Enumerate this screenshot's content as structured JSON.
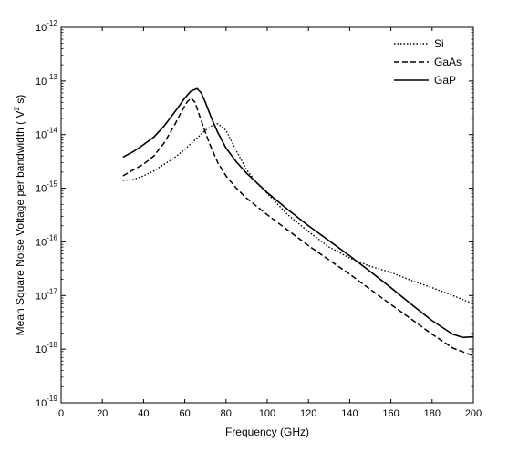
{
  "chart_data": {
    "type": "line",
    "title": "",
    "xlabel": "Frequency (GHz)",
    "ylabel_pre": "Mean Square Noise Voltage per bandwidth ( V",
    "ylabel_sup": "2",
    "ylabel_post": " s)",
    "xlim": [
      0,
      200
    ],
    "ylim_exp": [
      -19,
      -12
    ],
    "yscale": "log",
    "grid": false,
    "legend_position": "top-right",
    "x_ticks": [
      0,
      20,
      40,
      60,
      80,
      100,
      120,
      140,
      160,
      180,
      200
    ],
    "x_tick_labels": [
      "0",
      "20",
      "40",
      "60",
      "80",
      "100",
      "120",
      "140",
      "160",
      "180",
      "200"
    ],
    "y_ticks": [
      {
        "base": "10",
        "exp": "-12",
        "value": -12
      },
      {
        "base": "10",
        "exp": "-13",
        "value": -13
      },
      {
        "base": "10",
        "exp": "-14",
        "value": -14
      },
      {
        "base": "10",
        "exp": "-15",
        "value": -15
      },
      {
        "base": "10",
        "exp": "-16",
        "value": -16
      },
      {
        "base": "10",
        "exp": "-17",
        "value": -17
      },
      {
        "base": "10",
        "exp": "-18",
        "value": -18
      },
      {
        "base": "10",
        "exp": "-19",
        "value": -19
      }
    ],
    "series": [
      {
        "name": "Si",
        "style": "dotted",
        "color": "#000000",
        "x": [
          30,
          35,
          40,
          45,
          50,
          55,
          60,
          65,
          70,
          73,
          76,
          80,
          85,
          90,
          95,
          100,
          110,
          120,
          130,
          140,
          150,
          160,
          170,
          180,
          190,
          200
        ],
        "y": [
          1.4e-15,
          1.45e-15,
          1.7e-15,
          2.1e-15,
          2.8e-15,
          3.7e-15,
          5.3e-15,
          8e-15,
          1.2e-14,
          1.45e-14,
          1.6e-14,
          1.2e-14,
          5e-15,
          2.2e-15,
          1.25e-15,
          8e-16,
          3.2e-16,
          1.55e-16,
          8e-17,
          5e-17,
          3.5e-17,
          2.7e-17,
          1.9e-17,
          1.4e-17,
          1e-17,
          7e-18
        ]
      },
      {
        "name": "GaAs",
        "style": "dashed",
        "color": "#000000",
        "x": [
          30,
          35,
          40,
          45,
          50,
          55,
          58,
          61,
          63,
          65,
          68,
          72,
          76,
          80,
          85,
          90,
          100,
          110,
          120,
          130,
          140,
          150,
          160,
          170,
          180,
          190,
          200
        ],
        "y": [
          1.7e-15,
          2.2e-15,
          2.8e-15,
          4e-15,
          7e-15,
          1.5e-14,
          2.5e-14,
          4e-14,
          4.8e-14,
          4e-14,
          1.8e-14,
          6.8e-15,
          3e-15,
          1.7e-15,
          1e-15,
          6.5e-16,
          3.2e-16,
          1.65e-16,
          8.5e-17,
          4.6e-17,
          2.5e-17,
          1.3e-17,
          6.8e-18,
          3.6e-18,
          1.9e-18,
          1.05e-18,
          7.5e-19
        ]
      },
      {
        "name": "GaP",
        "style": "solid",
        "color": "#000000",
        "x": [
          30,
          35,
          40,
          45,
          50,
          55,
          60,
          63,
          66,
          68,
          70,
          73,
          76,
          80,
          85,
          90,
          100,
          110,
          120,
          130,
          140,
          150,
          160,
          170,
          180,
          190,
          195,
          200
        ],
        "y": [
          3.8e-15,
          4.8e-15,
          6.5e-15,
          9e-15,
          1.45e-14,
          2.6e-14,
          4.8e-14,
          6.5e-14,
          7.2e-14,
          6e-14,
          4e-14,
          2e-14,
          1.1e-14,
          5.6e-15,
          3.1e-15,
          1.9e-15,
          8.3e-16,
          4e-16,
          2e-16,
          1.05e-16,
          5.5e-17,
          2.8e-17,
          1.4e-17,
          6.8e-18,
          3.4e-18,
          1.9e-18,
          1.65e-18,
          1.7e-18
        ]
      }
    ]
  }
}
